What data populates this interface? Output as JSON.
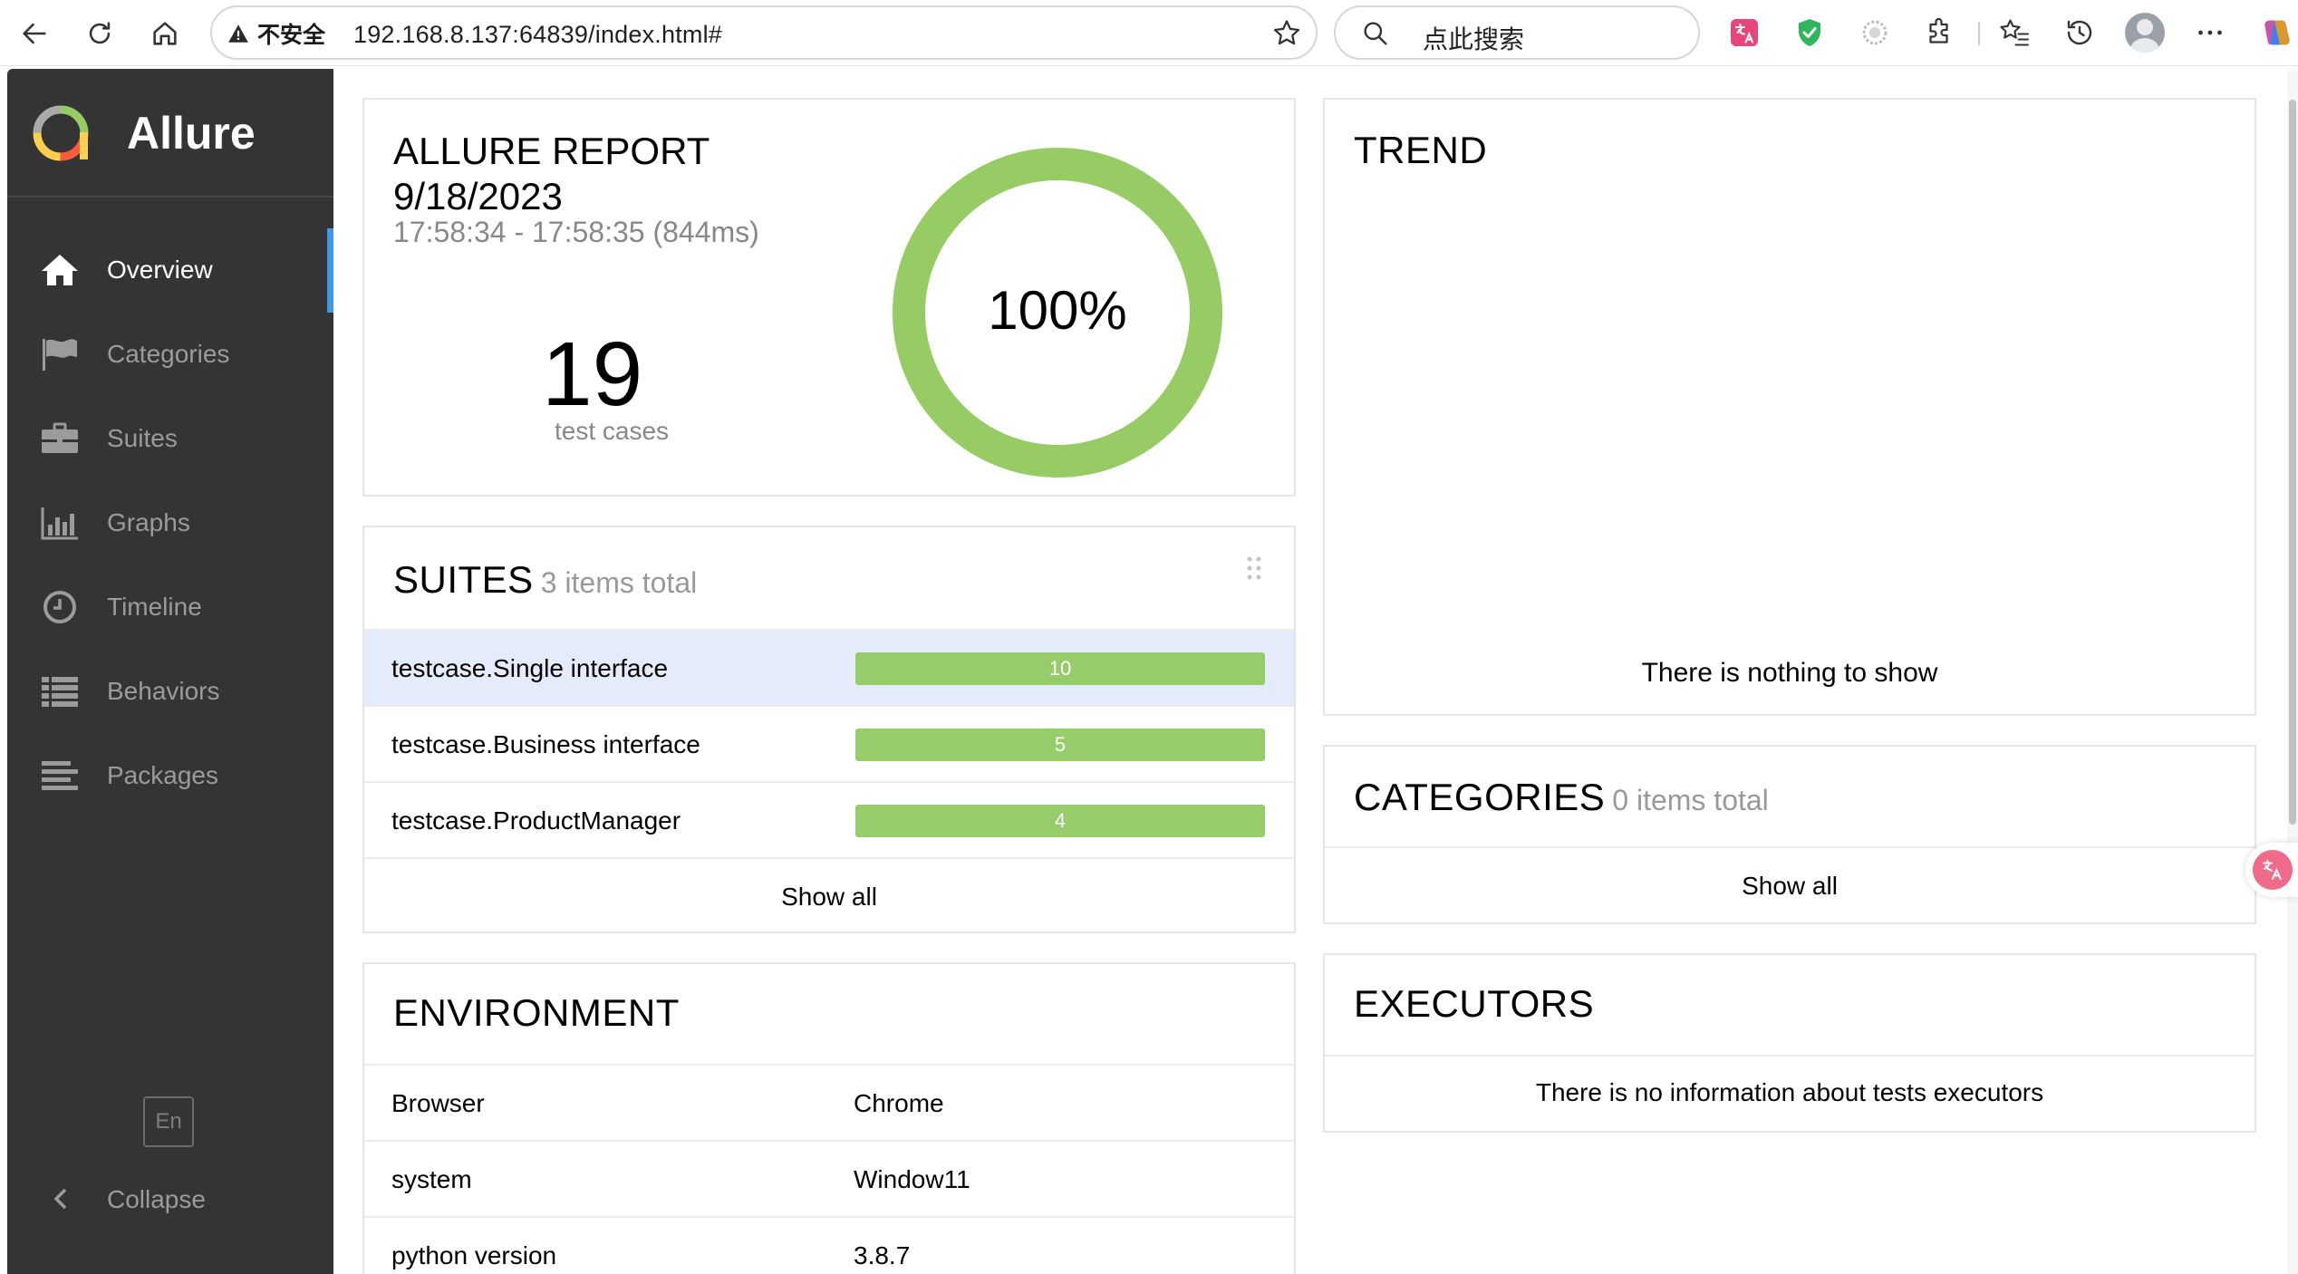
{
  "browser": {
    "security_label": "不安全",
    "url": "192.168.8.137:64839/index.html#",
    "search_placeholder": "点此搜索"
  },
  "sidebar": {
    "brand": "Allure",
    "items": [
      {
        "label": "Overview",
        "icon": "home-icon",
        "active": true
      },
      {
        "label": "Categories",
        "icon": "flag-icon",
        "active": false
      },
      {
        "label": "Suites",
        "icon": "briefcase-icon",
        "active": false
      },
      {
        "label": "Graphs",
        "icon": "bar-chart-icon",
        "active": false
      },
      {
        "label": "Timeline",
        "icon": "clock-icon",
        "active": false
      },
      {
        "label": "Behaviors",
        "icon": "list-icon",
        "active": false
      },
      {
        "label": "Packages",
        "icon": "align-left-icon",
        "active": false
      }
    ],
    "language": "En",
    "collapse": "Collapse"
  },
  "summary": {
    "title": "ALLURE REPORT",
    "date": "9/18/2023",
    "time_range": "17:58:34 - 17:58:35 (844ms)",
    "test_count": "19",
    "test_count_label": "test cases",
    "pass_rate": "100%",
    "pass_fraction": 1.0,
    "pass_color": "#97cc64"
  },
  "suites": {
    "title": "SUITES",
    "count_label": "3 items total",
    "rows": [
      {
        "name": "testcase.Single interface",
        "value": "10"
      },
      {
        "name": "testcase.Business interface",
        "value": "5"
      },
      {
        "name": "testcase.ProductManager",
        "value": "4"
      }
    ],
    "show_all": "Show all"
  },
  "environment": {
    "title": "ENVIRONMENT",
    "rows": [
      {
        "key": "Browser",
        "value": "Chrome"
      },
      {
        "key": "system",
        "value": "Window11"
      },
      {
        "key": "python version",
        "value": "3.8.7"
      }
    ]
  },
  "trend": {
    "title": "TREND",
    "empty": "There is nothing to show"
  },
  "categories": {
    "title": "CATEGORIES",
    "count_label": "0 items total",
    "show_all": "Show all"
  },
  "executors": {
    "title": "EXECUTORS",
    "empty": "There is no information about tests executors"
  },
  "colors": {
    "sidebar_bg": "#343434",
    "active_accent": "#3c9be8",
    "bar_green": "#96cd6a",
    "highlight_row": "#e4ecfb"
  }
}
